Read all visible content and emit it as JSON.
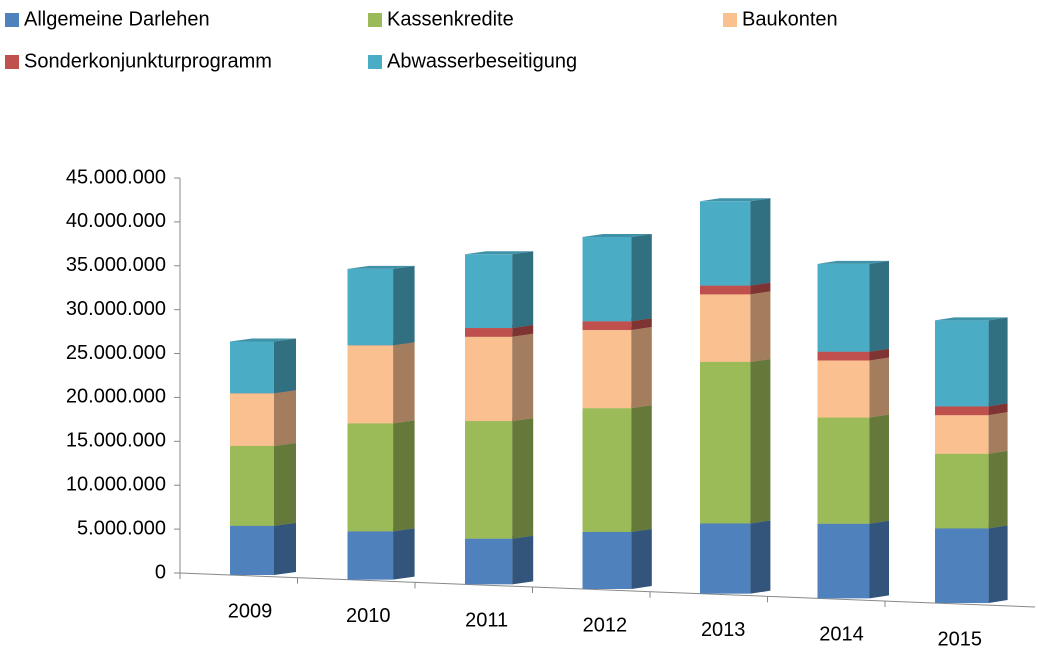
{
  "chart_data": {
    "type": "bar3d_stacked",
    "categories": [
      "2009",
      "2010",
      "2011",
      "2012",
      "2013",
      "2014",
      "2015"
    ],
    "series": [
      {
        "name": "Allgemeine Darlehen",
        "color": "#4f81bd",
        "values": [
          5600000,
          5500000,
          5200000,
          6500000,
          8000000,
          8500000,
          8500000
        ]
      },
      {
        "name": "Kassenkredite",
        "color": "#9bbb59",
        "values": [
          9100000,
          12300000,
          13400000,
          14100000,
          18400000,
          12100000,
          8500000
        ]
      },
      {
        "name": "Baukonten",
        "color": "#fac090",
        "values": [
          6000000,
          8900000,
          9600000,
          8900000,
          7700000,
          6500000,
          4400000
        ]
      },
      {
        "name": "Sonderkonjunkturprogramm",
        "color": "#c0504d",
        "values": [
          0,
          0,
          1000000,
          1000000,
          1000000,
          1000000,
          1000000
        ]
      },
      {
        "name": "Abwasserbeseitigung",
        "color": "#4bacc6",
        "values": [
          5900000,
          8700000,
          8400000,
          9600000,
          9600000,
          10000000,
          9800000
        ]
      }
    ],
    "ylim": [
      0,
      45000000
    ],
    "yticks": [
      0,
      {
        "value": 5000000,
        "label": "5.000.000"
      },
      {
        "value": 10000000,
        "label": "10.000.000"
      },
      {
        "value": 15000000,
        "label": "15.000.000"
      },
      {
        "value": 20000000,
        "label": "20.000.000"
      },
      {
        "value": 25000000,
        "label": "25.000.000"
      },
      {
        "value": 30000000,
        "label": "30.000.000"
      },
      {
        "value": 35000000,
        "label": "35.000.000"
      },
      {
        "value": 40000000,
        "label": "40.000.000"
      },
      {
        "value": 45000000,
        "label": "45.000.000"
      }
    ],
    "legend": "top"
  }
}
